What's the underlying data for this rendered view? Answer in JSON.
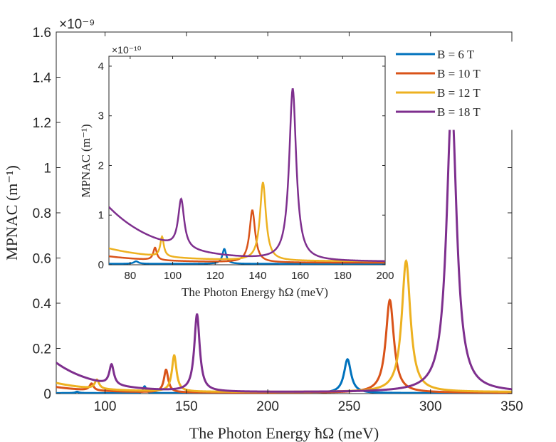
{
  "chart_data": [
    {
      "type": "line",
      "xlabel": "The Photon Energy ħΩ (meV)",
      "ylabel": "MPNAC (m⁻¹)",
      "y_exponent": "×10⁻⁹",
      "xlim": [
        70,
        350
      ],
      "ylim": [
        0,
        1.6
      ],
      "xticks": [
        "100",
        "150",
        "200",
        "250",
        "300",
        "350"
      ],
      "yticks": [
        "0",
        "0.2",
        "0.4",
        "0.6",
        "0.8",
        "1",
        "1.2",
        "1.4",
        "1.6"
      ],
      "legend_position": "top-right",
      "series": [
        {
          "name": "B = 6 T",
          "color": "#0072BD",
          "baseline": 0.002,
          "tail": 0.0,
          "peaks": [
            {
              "x": 82.8,
              "h": 0.006,
              "w": 1.3
            },
            {
              "x": 124.3,
              "h": 0.03,
              "w": 1.1
            },
            {
              "x": 249,
              "h": 0.15,
              "w": 2.6
            }
          ]
        },
        {
          "name": "B = 10 T",
          "color": "#D95319",
          "baseline": 0.004,
          "tail": 0.025,
          "peaks": [
            {
              "x": 91.7,
              "h": 0.03,
              "w": 1.5
            },
            {
              "x": 137.5,
              "h": 0.1,
              "w": 1.6
            },
            {
              "x": 275,
              "h": 0.41,
              "w": 3.0
            }
          ]
        },
        {
          "name": "B = 12 T",
          "color": "#EDB120",
          "baseline": 0.007,
          "tail": 0.04,
          "peaks": [
            {
              "x": 95,
              "h": 0.04,
              "w": 1.6
            },
            {
              "x": 142.5,
              "h": 0.16,
              "w": 1.7
            },
            {
              "x": 285,
              "h": 0.58,
              "w": 3.2
            }
          ]
        },
        {
          "name": "B = 18 T",
          "color": "#7E2F8E",
          "baseline": 0.006,
          "tail": 0.13,
          "peaks": [
            {
              "x": 104,
              "h": 0.09,
              "w": 1.7
            },
            {
              "x": 156.5,
              "h": 0.34,
              "w": 2.0
            },
            {
              "x": 313,
              "h": 1.28,
              "w": 3.8
            }
          ]
        }
      ]
    },
    {
      "type": "line",
      "inset": true,
      "xlabel": "The Photon Energy ħΩ (meV)",
      "ylabel": "MPNAC (m⁻¹)",
      "y_exponent": "×10⁻¹⁰",
      "xlim": [
        70,
        200
      ],
      "ylim": [
        0,
        4.2
      ],
      "xticks": [
        "80",
        "100",
        "120",
        "140",
        "160",
        "180",
        "200"
      ],
      "yticks": [
        "0",
        "1",
        "2",
        "3",
        "4"
      ],
      "series": [
        {
          "name": "B = 6 T",
          "color": "#0072BD",
          "baseline": 0.02,
          "tail": 0.0,
          "peaks": [
            {
              "x": 82.8,
              "h": 0.05,
              "w": 1.3
            },
            {
              "x": 124.3,
              "h": 0.3,
              "w": 1.1
            }
          ]
        },
        {
          "name": "B = 10 T",
          "color": "#D95319",
          "baseline": 0.04,
          "tail": 0.13,
          "peaks": [
            {
              "x": 91.7,
              "h": 0.25,
              "w": 1.0
            },
            {
              "x": 137.5,
              "h": 1.05,
              "w": 1.6
            }
          ]
        },
        {
          "name": "B = 12 T",
          "color": "#EDB120",
          "baseline": 0.07,
          "tail": 0.26,
          "peaks": [
            {
              "x": 95,
              "h": 0.4,
              "w": 1.0
            },
            {
              "x": 142.5,
              "h": 1.57,
              "w": 1.7
            }
          ]
        },
        {
          "name": "B = 18 T",
          "color": "#7E2F8E",
          "baseline": 0.06,
          "tail": 1.1,
          "peaks": [
            {
              "x": 104,
              "h": 0.98,
              "w": 1.7
            },
            {
              "x": 156.5,
              "h": 3.45,
              "w": 2.0
            }
          ]
        }
      ]
    }
  ]
}
